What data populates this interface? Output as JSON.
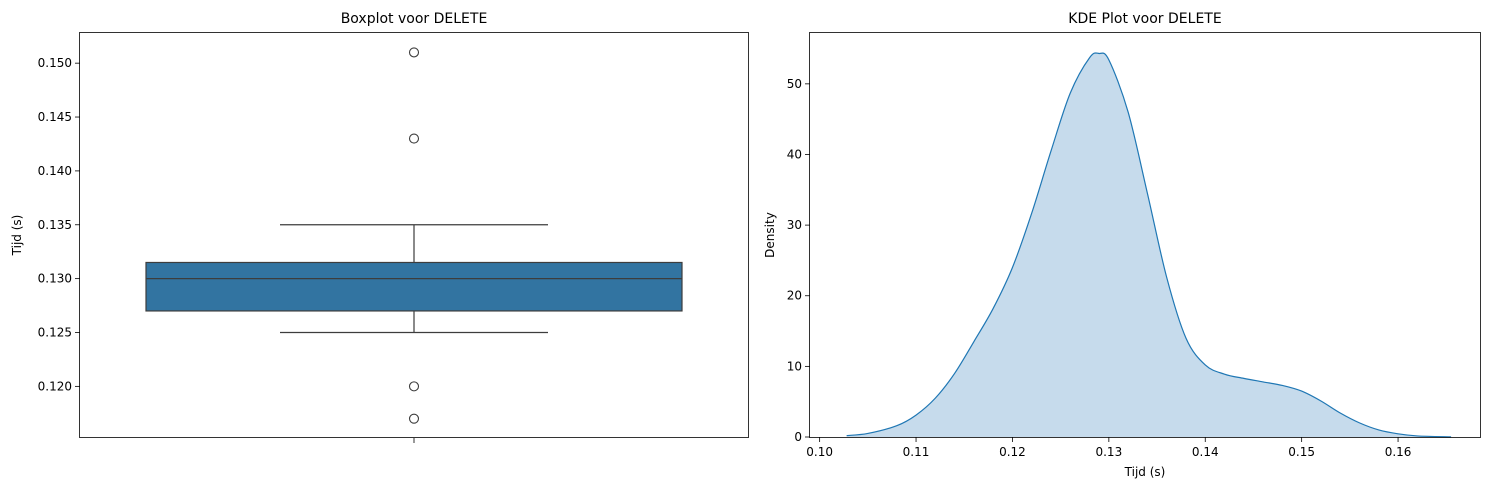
{
  "chart_data": [
    {
      "type": "box",
      "title": "Boxplot voor DELETE",
      "xlabel": "",
      "ylabel": "Tijd (s)",
      "ylim": [
        0.1153,
        0.1528
      ],
      "yticks": [
        0.12,
        0.125,
        0.13,
        0.135,
        0.14,
        0.145,
        0.15
      ],
      "ytick_labels": [
        "0.120",
        "0.125",
        "0.130",
        "0.135",
        "0.140",
        "0.145",
        "0.150"
      ],
      "box": {
        "whisker_low": 0.125,
        "q1": 0.127,
        "median": 0.13,
        "q3": 0.1315,
        "whisker_high": 0.135
      },
      "outliers": [
        0.117,
        0.12,
        0.143,
        0.151
      ],
      "box_color": "#3274a1",
      "line_color": "#3d3d3d",
      "grid": false
    },
    {
      "type": "area",
      "title": "KDE Plot voor DELETE",
      "xlabel": "Tijd (s)",
      "ylabel": "Density",
      "xlim": [
        0.099,
        0.1685
      ],
      "ylim": [
        0,
        57.2
      ],
      "xticks": [
        0.1,
        0.11,
        0.12,
        0.13,
        0.14,
        0.15,
        0.16
      ],
      "xtick_labels": [
        "0.10",
        "0.11",
        "0.12",
        "0.13",
        "0.14",
        "0.15",
        "0.16"
      ],
      "yticks": [
        0,
        10,
        20,
        30,
        40,
        50
      ],
      "ytick_labels": [
        "0",
        "10",
        "20",
        "30",
        "40",
        "50"
      ],
      "x": [
        0.1028,
        0.105,
        0.108,
        0.11,
        0.112,
        0.114,
        0.116,
        0.118,
        0.12,
        0.122,
        0.124,
        0.126,
        0.128,
        0.129,
        0.13,
        0.132,
        0.134,
        0.136,
        0.138,
        0.14,
        0.142,
        0.144,
        0.146,
        0.148,
        0.15,
        0.152,
        0.154,
        0.156,
        0.158,
        0.16,
        0.162,
        0.1655
      ],
      "y": [
        0.2,
        0.5,
        1.6,
        3.1,
        5.5,
        9.0,
        13.5,
        18.2,
        24.0,
        31.7,
        40.5,
        48.7,
        53.7,
        54.3,
        53.4,
        46.0,
        34.5,
        22.6,
        14.0,
        10.2,
        8.9,
        8.3,
        7.8,
        7.3,
        6.5,
        5.1,
        3.4,
        2.0,
        1.0,
        0.45,
        0.15,
        0.02
      ],
      "line_color": "#1f77b4",
      "fill_color": "#c6dbec",
      "grid": false
    }
  ]
}
